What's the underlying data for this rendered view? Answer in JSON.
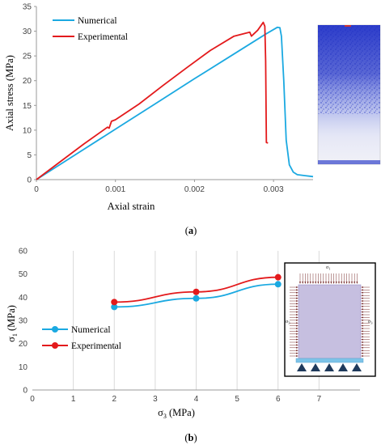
{
  "chart_data": [
    {
      "type": "line",
      "panel_label": "a",
      "xlabel": "Axial strain",
      "ylabel": "Axial stress (MPa)",
      "xlim": [
        0,
        0.0035
      ],
      "ylim": [
        0,
        35
      ],
      "x_ticks": [
        "0",
        "0.001",
        "0.002",
        "0.003"
      ],
      "x_tick_values": [
        0,
        0.001,
        0.002,
        0.003
      ],
      "y_ticks": [
        "0",
        "5",
        "10",
        "15",
        "20",
        "25",
        "30",
        "35"
      ],
      "y_tick_values": [
        0,
        5,
        10,
        15,
        20,
        25,
        30,
        35
      ],
      "grid": false,
      "legend_position": "top-left",
      "series": [
        {
          "name": "Numerical",
          "color": "#1ba9e1",
          "x": [
            0,
            0.0005,
            0.001,
            0.0015,
            0.002,
            0.0025,
            0.0029,
            0.00305,
            0.00308,
            0.0031,
            0.00313,
            0.00316,
            0.0032,
            0.00325,
            0.0033,
            0.0034,
            0.0035
          ],
          "y": [
            0,
            5.1,
            10.2,
            15.3,
            20.4,
            25.4,
            29.4,
            30.8,
            30.7,
            29.0,
            20.0,
            8.0,
            3.0,
            1.5,
            1.0,
            0.8,
            0.6
          ]
        },
        {
          "name": "Experimental",
          "color": "#e31a1c",
          "x": [
            0,
            0.0003,
            0.0006,
            0.0009,
            0.00092,
            0.00095,
            0.001,
            0.0013,
            0.0016,
            0.0019,
            0.0022,
            0.0025,
            0.0027,
            0.00272,
            0.0028,
            0.00284,
            0.00287,
            0.00289,
            0.0029,
            0.00291,
            0.00293
          ],
          "y": [
            0,
            3.6,
            7.2,
            10.6,
            10.4,
            11.8,
            12.1,
            15.3,
            19.0,
            22.6,
            26.1,
            29.0,
            29.8,
            29.0,
            30.2,
            31.1,
            31.8,
            31.0,
            24.0,
            7.5,
            7.4
          ]
        }
      ]
    },
    {
      "type": "line",
      "panel_label": "b",
      "xlabel": "σ3 (MPa)",
      "ylabel": "σ1 (MPa)",
      "xlim": [
        0,
        8
      ],
      "ylim": [
        0,
        60
      ],
      "x_ticks": [
        "0",
        "1",
        "2",
        "3",
        "4",
        "5",
        "6",
        "7"
      ],
      "x_tick_values": [
        0,
        1,
        2,
        3,
        4,
        5,
        6,
        7
      ],
      "y_ticks": [
        "0",
        "10",
        "20",
        "30",
        "40",
        "50",
        "60"
      ],
      "y_tick_values": [
        0,
        10,
        20,
        30,
        40,
        50,
        60
      ],
      "grid": true,
      "legend_position": "center-left",
      "series": [
        {
          "name": "Numerical",
          "color": "#1ba9e1",
          "x": [
            2,
            4,
            6
          ],
          "y": [
            35.8,
            39.5,
            45.6
          ]
        },
        {
          "name": "Experimental",
          "color": "#e31a1c",
          "x": [
            2,
            4,
            6
          ],
          "y": [
            37.9,
            42.3,
            48.6
          ]
        }
      ]
    }
  ],
  "inset_a": {
    "description_icon": "blue-damage-specimen-icon",
    "fill_color": "#3344cc"
  },
  "inset_b": {
    "labels": {
      "top": "σ1",
      "left": "σ3",
      "right": "σ3"
    },
    "body_color": "#c6bfe0",
    "base_color": "#7dc3e8"
  }
}
